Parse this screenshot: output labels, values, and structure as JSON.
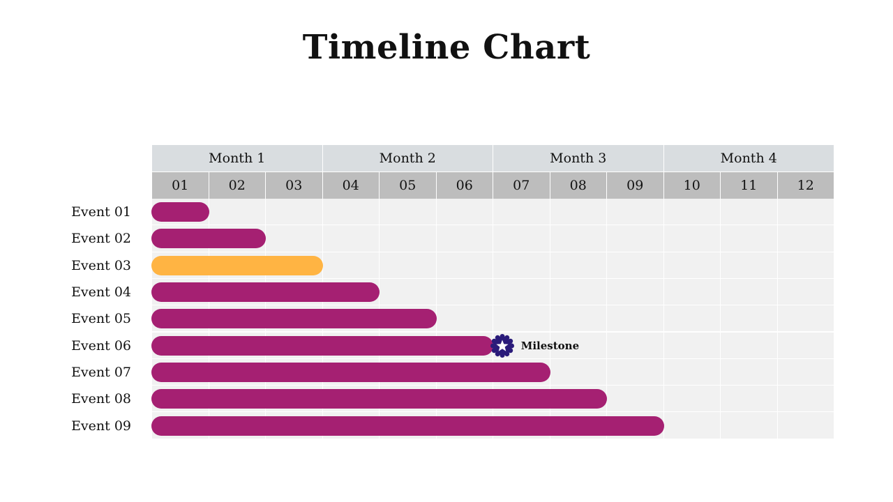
{
  "title": "Timeline Chart",
  "chart_data": {
    "type": "gantt",
    "months": [
      "Month 1",
      "Month 2",
      "Month 3",
      "Month 4"
    ],
    "weeks": [
      "01",
      "02",
      "03",
      "04",
      "05",
      "06",
      "07",
      "08",
      "09",
      "10",
      "11",
      "12"
    ],
    "events": [
      {
        "label": "Event 01",
        "start": 1,
        "end": 1,
        "color": "#a52072"
      },
      {
        "label": "Event 02",
        "start": 1,
        "end": 2,
        "color": "#a52072"
      },
      {
        "label": "Event 03",
        "start": 1,
        "end": 3,
        "color": "#ffb443"
      },
      {
        "label": "Event 04",
        "start": 1,
        "end": 4,
        "color": "#a52072"
      },
      {
        "label": "Event 05",
        "start": 1,
        "end": 5,
        "color": "#a52072"
      },
      {
        "label": "Event 06",
        "start": 1,
        "end": 6,
        "color": "#a52072"
      },
      {
        "label": "Event 07",
        "start": 1,
        "end": 7,
        "color": "#a52072"
      },
      {
        "label": "Event 08",
        "start": 1,
        "end": 8,
        "color": "#a52072"
      },
      {
        "label": "Event 09",
        "start": 1,
        "end": 9,
        "color": "#a52072"
      }
    ],
    "milestone": {
      "label": "Milestone",
      "event": "Event 06",
      "week": 7,
      "color": "#2a1b7a",
      "icon": "star-badge-icon"
    }
  }
}
